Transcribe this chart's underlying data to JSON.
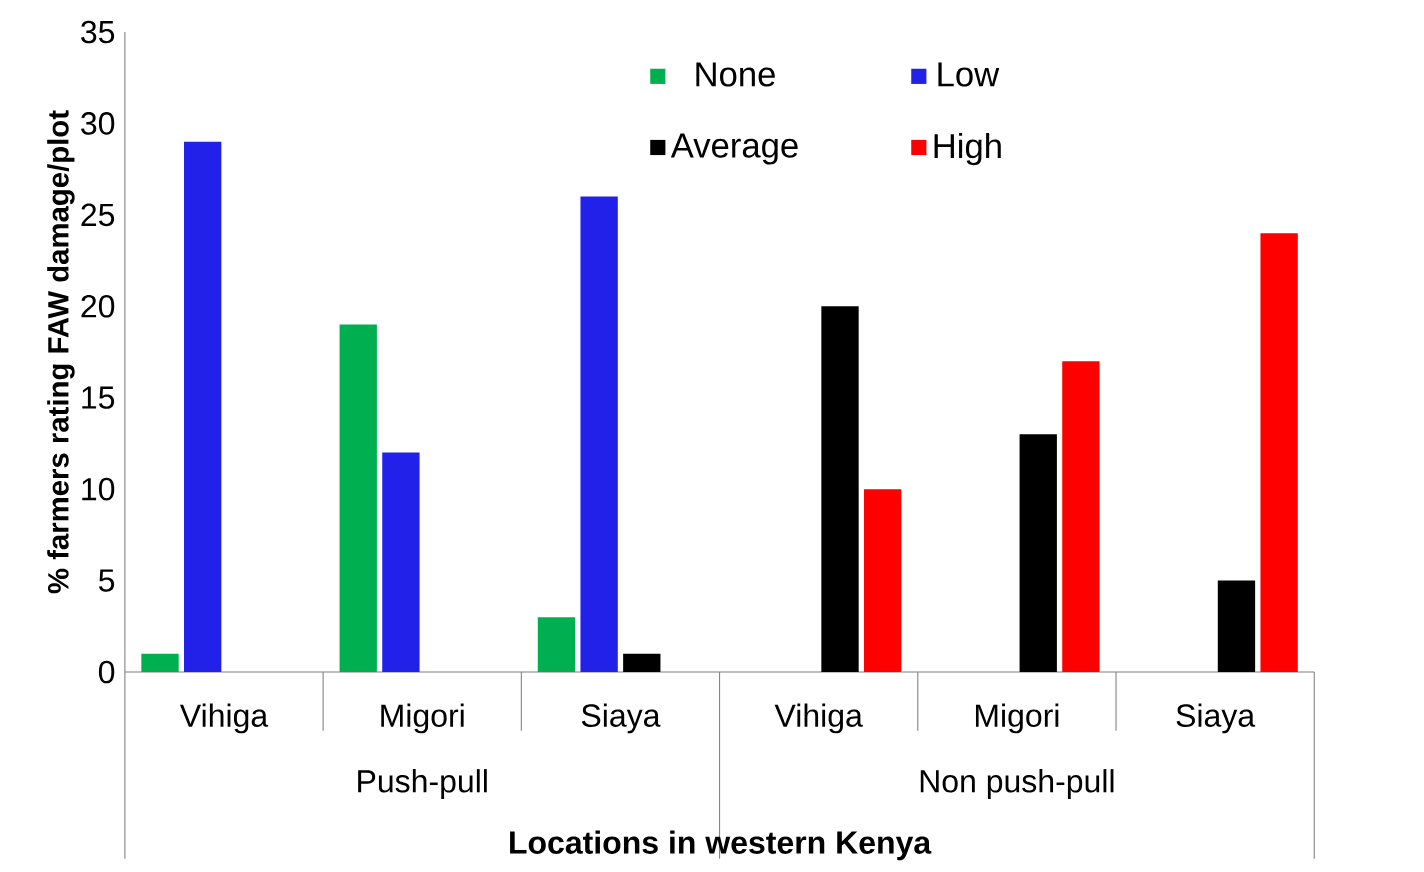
{
  "chart_data": {
    "type": "bar",
    "xlabel": "Locations in western Kenya",
    "ylabel": "% farmers rating FAW damage/plot",
    "categories": [
      "Vihiga",
      "Migori",
      "Siaya",
      "Vihiga",
      "Migori",
      "Siaya"
    ],
    "series": [
      {
        "name": "None",
        "color": "#00b050",
        "values": [
          1,
          19,
          3,
          null,
          null,
          null
        ]
      },
      {
        "name": "Low",
        "color": "#2121ea",
        "values": [
          29,
          12,
          26,
          null,
          null,
          null
        ]
      },
      {
        "name": "Average",
        "color": "#000000",
        "values": [
          null,
          null,
          1,
          20,
          13,
          5
        ]
      },
      {
        "name": "High",
        "color": "#ff0000",
        "values": [
          null,
          null,
          null,
          10,
          17,
          24
        ]
      }
    ],
    "annotations": [
      "Push-pull",
      "Non push-pull"
    ],
    "ylim": [
      0,
      35
    ],
    "yticks": [
      0,
      5,
      10,
      15,
      20,
      25,
      30,
      35
    ],
    "grid": false,
    "legend": "top right"
  }
}
